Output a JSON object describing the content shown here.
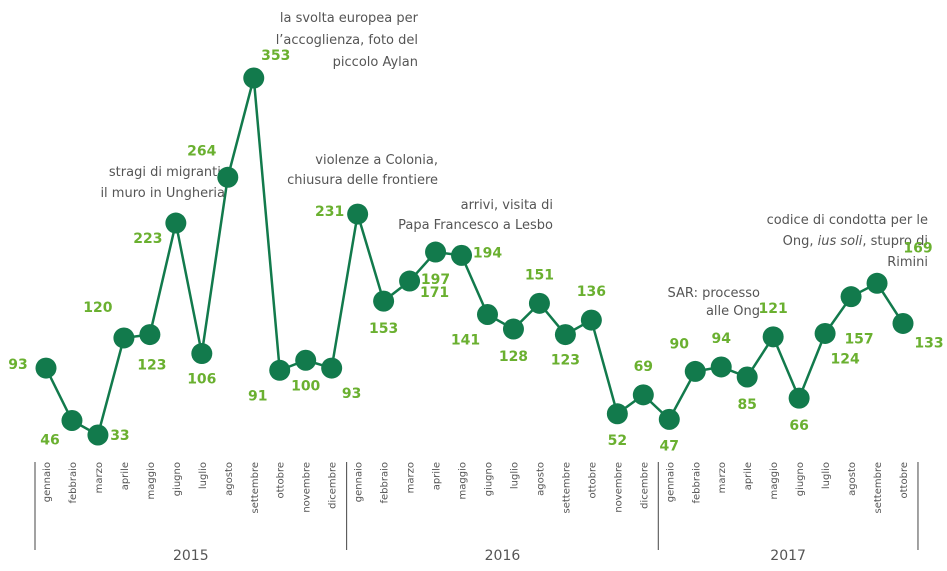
{
  "chart_data": {
    "type": "line",
    "categories": [
      "gennaio",
      "febbraio",
      "marzo",
      "aprile",
      "maggio",
      "giugno",
      "luglio",
      "agosto",
      "settembre",
      "ottobre",
      "novembre",
      "dicembre",
      "gennaio",
      "febbraio",
      "marzo",
      "aprile",
      "maggio",
      "giugno",
      "luglio",
      "agosto",
      "settembre",
      "ottobre",
      "novembre",
      "dicembre",
      "gennaio",
      "febbraio",
      "marzo",
      "aprile",
      "maggio",
      "giugno",
      "luglio",
      "agosto",
      "settembre",
      "ottobre"
    ],
    "years": [
      "2015",
      "2016",
      "2017"
    ],
    "series": [
      {
        "color": "#127a4c",
        "label_color": "#6ab030",
        "values": [
          93,
          46,
          33,
          120,
          123,
          223,
          106,
          264,
          353,
          91,
          100,
          93,
          231,
          153,
          171,
          197,
          194,
          141,
          128,
          151,
          123,
          136,
          52,
          69,
          47,
          90,
          94,
          85,
          121,
          66,
          124,
          157,
          169,
          133
        ]
      }
    ],
    "annotations": [
      {
        "lines": [
          [
            {
              "text": "la svolta europea per"
            }
          ],
          [
            {
              "text": "l’accoglienza, foto del"
            }
          ],
          [
            {
              "text": "piccolo Aylan"
            }
          ]
        ]
      },
      {
        "lines": [
          [
            {
              "text": "stragi di migranti,"
            }
          ],
          [
            {
              "text": "il muro in Ungheria"
            }
          ]
        ]
      },
      {
        "lines": [
          [
            {
              "text": "violenze a Colonia,"
            }
          ],
          [
            {
              "text": "chiusura delle frontiere"
            }
          ]
        ]
      },
      {
        "lines": [
          [
            {
              "text": "arrivi, visita di"
            }
          ],
          [
            {
              "text": "Papa Francesco a Lesbo"
            }
          ]
        ]
      },
      {
        "lines": [
          [
            {
              "text": "SAR: processo"
            }
          ],
          [
            {
              "text": "alle Ong"
            }
          ]
        ]
      },
      {
        "lines": [
          [
            {
              "text": "codice di condotta per le"
            }
          ],
          [
            {
              "text": "Ong, "
            },
            {
              "text": "ius soli",
              "italic": true
            },
            {
              "text": ", stupro di"
            }
          ],
          [
            {
              "text": "Rimini"
            }
          ]
        ]
      }
    ]
  }
}
